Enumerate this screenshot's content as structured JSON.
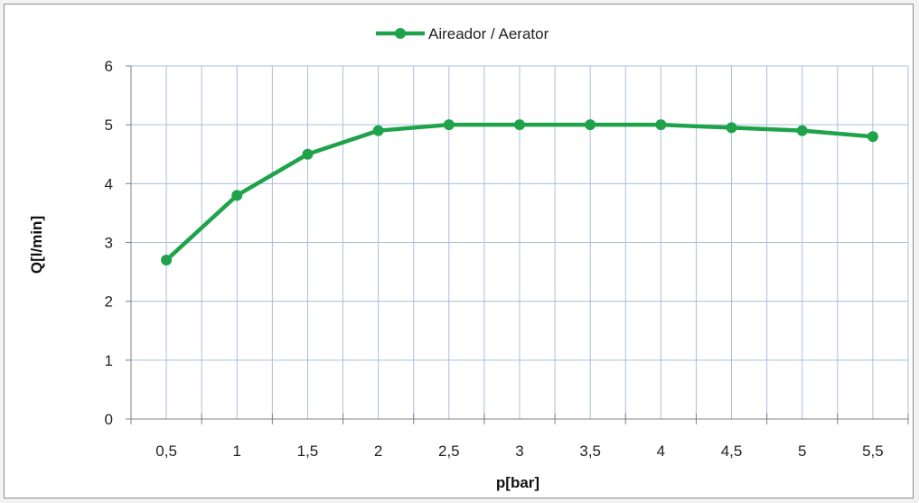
{
  "chart_data": {
    "type": "line",
    "x": [
      "0,5",
      "1",
      "1,5",
      "2",
      "2,5",
      "3",
      "3,5",
      "4",
      "4,5",
      "5",
      "5,5"
    ],
    "series": [
      {
        "name": "Aireador / Aerator",
        "values": [
          2.7,
          3.8,
          4.5,
          4.9,
          5.0,
          5.0,
          5.0,
          5.0,
          4.95,
          4.9,
          4.8
        ],
        "color": "#1fa34a"
      }
    ],
    "xlabel": "p[bar]",
    "ylabel": "Q[l/min]",
    "ylim": [
      0,
      6
    ],
    "yticks": [
      "0",
      "1",
      "2",
      "3",
      "4",
      "5",
      "6"
    ],
    "grid": "both",
    "legend_position": "top-center",
    "grid_color": "#a9bfe0"
  }
}
